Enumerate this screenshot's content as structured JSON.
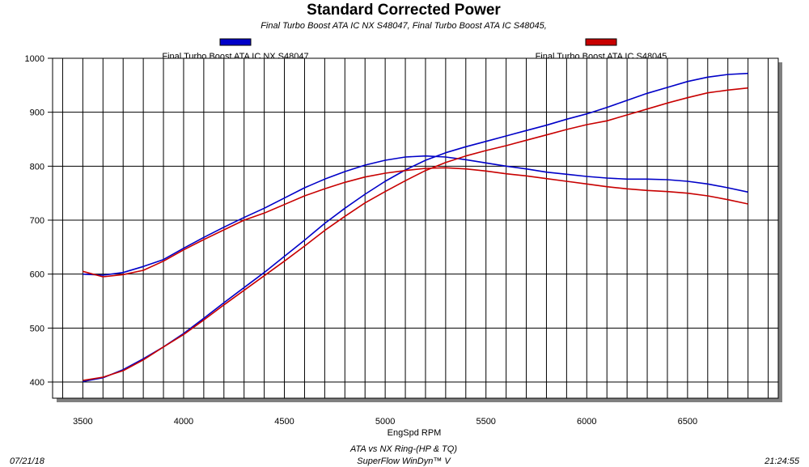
{
  "chart_data": {
    "type": "line",
    "title": "Standard Corrected Power",
    "subtitle": "Final Turbo Boost ATA IC NX S48047, Final Turbo Boost ATA IC S48045,",
    "xlabel": "EngSpd RPM",
    "ylabel": "",
    "xlim": [
      3350,
      6950
    ],
    "ylim": [
      370,
      1000
    ],
    "xticks": [
      3500,
      4000,
      4500,
      5000,
      5500,
      6000,
      6500
    ],
    "yticks": [
      400,
      500,
      600,
      700,
      800,
      900,
      1000
    ],
    "grid": true,
    "legend_position": "top",
    "series": [
      {
        "name": "Final Turbo Boost ATA IC NX S48047",
        "color": "#0000c8",
        "curves": [
          {
            "x": [
              3500,
              3600,
              3700,
              3800,
              3900,
              4000,
              4100,
              4200,
              4300,
              4400,
              4500,
              4600,
              4700,
              4800,
              4900,
              5000,
              5100,
              5200,
              5300,
              5400,
              5500,
              5600,
              5700,
              5800,
              5900,
              6000,
              6100,
              6200,
              6300,
              6400,
              6500,
              6600,
              6700,
              6800
            ],
            "y": [
              401,
              408,
              423,
              443,
              465,
              490,
              518,
              547,
              575,
              603,
              633,
              663,
              694,
              722,
              748,
              772,
              793,
              811,
              825,
              836,
              846,
              856,
              866,
              876,
              887,
              897,
              909,
              922,
              935,
              946,
              957,
              965,
              970,
              972
            ]
          },
          {
            "x": [
              3500,
              3600,
              3700,
              3800,
              3900,
              4000,
              4100,
              4200,
              4300,
              4400,
              4500,
              4600,
              4700,
              4800,
              4900,
              5000,
              5100,
              5200,
              5300,
              5400,
              5500,
              5600,
              5700,
              5800,
              5900,
              6000,
              6100,
              6200,
              6300,
              6400,
              6500,
              6600,
              6700,
              6800
            ],
            "y": [
              600,
              598,
              603,
              614,
              627,
              648,
              668,
              687,
              705,
              722,
              741,
              760,
              776,
              790,
              802,
              811,
              817,
              819,
              817,
              812,
              806,
              800,
              795,
              789,
              785,
              781,
              778,
              776,
              776,
              775,
              772,
              767,
              760,
              752
            ]
          }
        ]
      },
      {
        "name": "Final Turbo Boost ATA IC S48045",
        "color": "#c80000",
        "curves": [
          {
            "x": [
              3500,
              3600,
              3700,
              3800,
              3900,
              4000,
              4100,
              4200,
              4300,
              4400,
              4500,
              4600,
              4700,
              4800,
              4900,
              5000,
              5100,
              5200,
              5300,
              5400,
              5500,
              5600,
              5700,
              5800,
              5900,
              6000,
              6100,
              6200,
              6300,
              6400,
              6500,
              6600,
              6700,
              6800
            ],
            "y": [
              403,
              409,
              421,
              441,
              465,
              488,
              515,
              543,
              570,
              597,
              624,
              652,
              681,
              707,
              732,
              753,
              773,
              792,
              807,
              819,
              829,
              838,
              848,
              858,
              868,
              877,
              884,
              895,
              906,
              917,
              927,
              936,
              941,
              945
            ]
          },
          {
            "x": [
              3500,
              3600,
              3700,
              3800,
              3900,
              4000,
              4100,
              4200,
              4300,
              4400,
              4500,
              4600,
              4700,
              4800,
              4900,
              5000,
              5100,
              5200,
              5300,
              5400,
              5500,
              5600,
              5700,
              5800,
              5900,
              6000,
              6100,
              6200,
              6300,
              6400,
              6500,
              6600,
              6700,
              6800
            ],
            "y": [
              605,
              595,
              599,
              607,
              624,
              645,
              664,
              682,
              700,
              713,
              729,
              745,
              758,
              770,
              780,
              787,
              792,
              796,
              797,
              795,
              791,
              786,
              782,
              777,
              772,
              767,
              762,
              758,
              755,
              753,
              750,
              745,
              738,
              730
            ]
          }
        ]
      }
    ]
  },
  "footer": {
    "date": "07/21/18",
    "line1": "ATA vs NX Ring-(HP & TQ)",
    "line2": "SuperFlow WinDyn™ V",
    "time": "21:24:55"
  }
}
